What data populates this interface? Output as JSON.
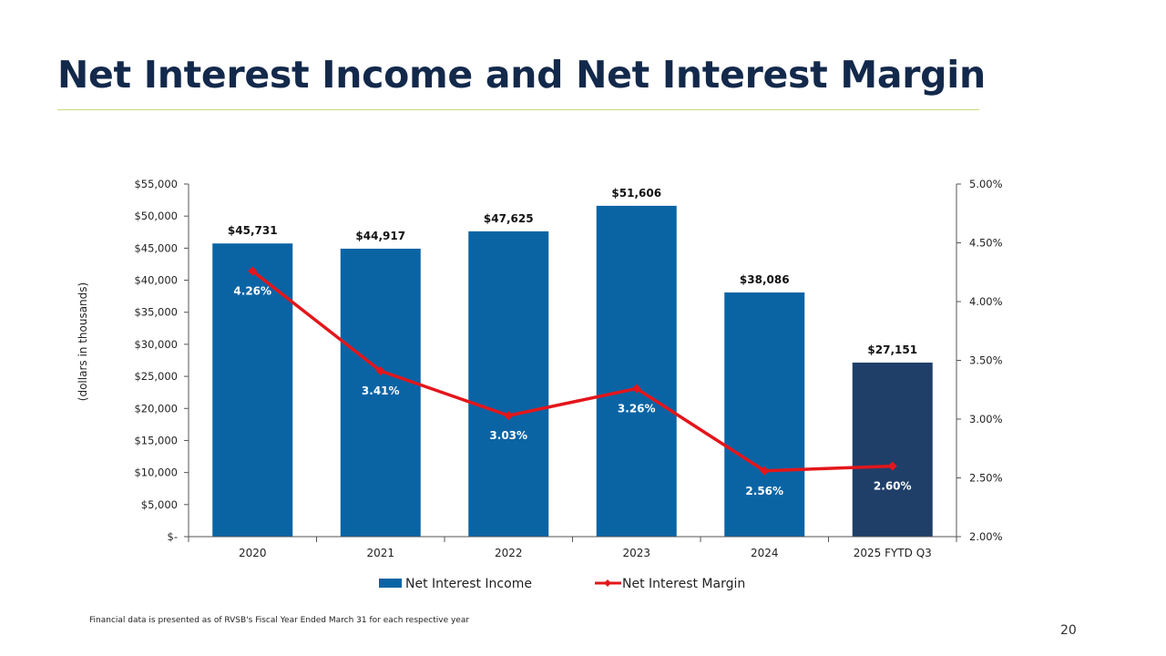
{
  "slide": {
    "title": "Net Interest Income and Net Interest Margin",
    "footnote": "Financial data is presented as of RVSB's Fiscal Year Ended March 31 for each respective year",
    "page_number": "20"
  },
  "colors": {
    "title": "#13294b",
    "accent_rule": "#c5dc7a",
    "bar": "#0a64a4",
    "bar_highlight": "#1f3f69",
    "line": "#e3161b"
  },
  "chart_data": {
    "type": "bar",
    "categories": [
      "2020",
      "2021",
      "2022",
      "2023",
      "2024",
      "2025 FYTD Q3"
    ],
    "series": [
      {
        "name": "Net Interest Income",
        "type": "bar",
        "axis": "left",
        "values": [
          45731,
          44917,
          47625,
          51606,
          38086,
          27151
        ],
        "labels": [
          "$45,731",
          "$44,917",
          "$47,625",
          "$51,606",
          "$38,086",
          "$27,151"
        ]
      },
      {
        "name": "Net Interest Margin",
        "type": "line",
        "axis": "right",
        "values": [
          4.26,
          3.41,
          3.03,
          3.26,
          2.56,
          2.6
        ],
        "labels": [
          "4.26%",
          "3.41%",
          "3.03%",
          "3.26%",
          "2.56%",
          "2.60%"
        ]
      }
    ],
    "ylabel": "(dollars in thousands)",
    "ylim": [
      0,
      55000
    ],
    "y_ticks": [
      0,
      5000,
      10000,
      15000,
      20000,
      25000,
      30000,
      35000,
      40000,
      45000,
      50000,
      55000
    ],
    "y_tick_labels": [
      "$-",
      "$5,000",
      "$10,000",
      "$15,000",
      "$20,000",
      "$25,000",
      "$30,000",
      "$35,000",
      "$40,000",
      "$45,000",
      "$50,000",
      "$55,000"
    ],
    "y2lim": [
      2.0,
      5.0
    ],
    "y2_ticks": [
      2.0,
      2.5,
      3.0,
      3.5,
      4.0,
      4.5,
      5.0
    ],
    "y2_tick_labels": [
      "2.00%",
      "2.50%",
      "3.00%",
      "3.50%",
      "4.00%",
      "4.50%",
      "5.00%"
    ],
    "legend": [
      "Net Interest Income",
      "Net Interest Margin"
    ],
    "legend_position": "bottom",
    "grid": false
  }
}
